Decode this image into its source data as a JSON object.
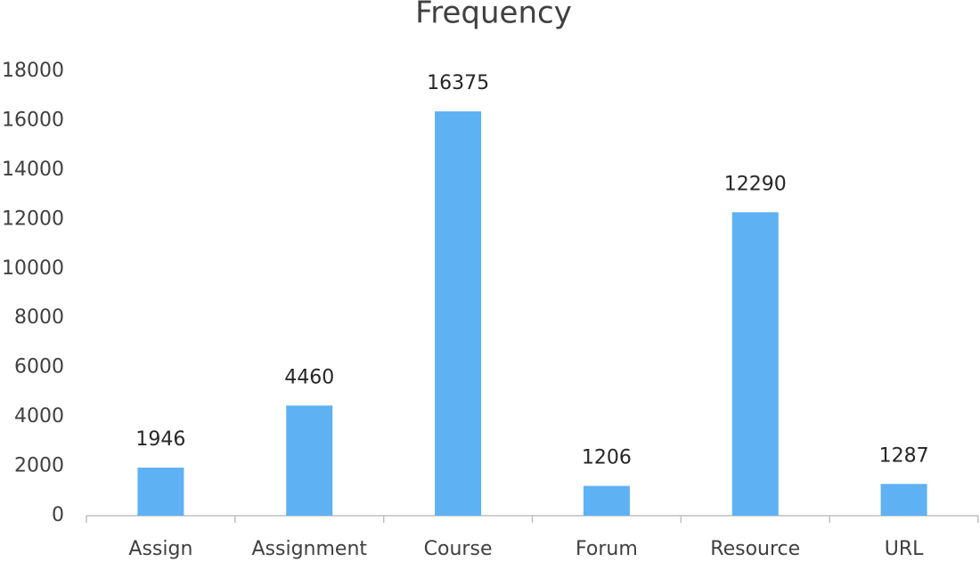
{
  "chart_data": {
    "type": "bar",
    "title": "Frequency",
    "categories": [
      "Assign",
      "Assignment",
      "Course",
      "Forum",
      "Resource",
      "URL"
    ],
    "values": [
      1946,
      4460,
      16375,
      1206,
      12290,
      1287
    ],
    "color": "#5eb1f2",
    "ylim": [
      0,
      18000
    ],
    "yticks": [
      0,
      2000,
      4000,
      6000,
      8000,
      10000,
      12000,
      14000,
      16000,
      18000
    ],
    "grid": false,
    "data_labels": true
  }
}
